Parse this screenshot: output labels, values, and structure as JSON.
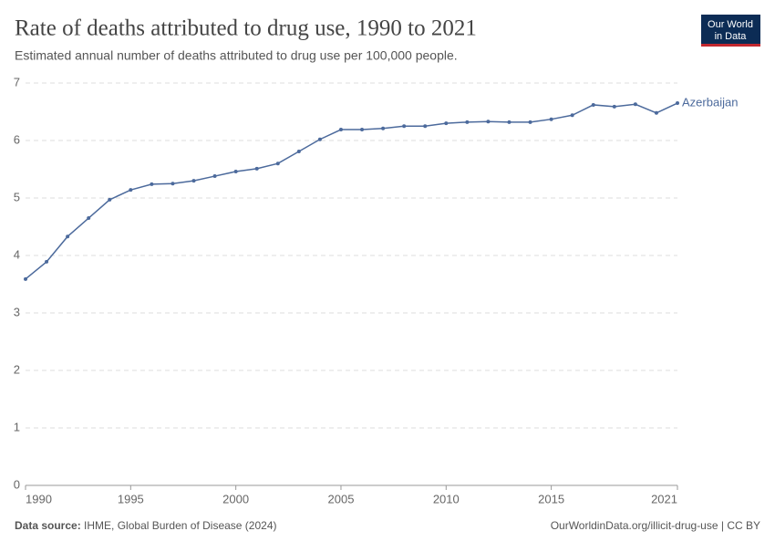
{
  "logo": [
    "Our World",
    "in Data"
  ],
  "chart_data": {
    "type": "line",
    "title": "Rate of deaths attributed to drug use, 1990 to 2021",
    "subtitle": "Estimated annual number of deaths attributed to drug use per 100,000 people.",
    "x": [
      1990,
      1991,
      1992,
      1993,
      1994,
      1995,
      1996,
      1997,
      1998,
      1999,
      2000,
      2001,
      2002,
      2003,
      2004,
      2005,
      2006,
      2007,
      2008,
      2009,
      2010,
      2011,
      2012,
      2013,
      2014,
      2015,
      2016,
      2017,
      2018,
      2019,
      2020,
      2021
    ],
    "series": [
      {
        "name": "Azerbaijan",
        "color": "#4c6a9c",
        "values": [
          3.59,
          3.89,
          4.33,
          4.65,
          4.97,
          5.14,
          5.24,
          5.25,
          5.3,
          5.38,
          5.46,
          5.51,
          5.6,
          5.81,
          6.02,
          6.19,
          6.19,
          6.21,
          6.25,
          6.25,
          6.3,
          6.32,
          6.33,
          6.32,
          6.32,
          6.37,
          6.44,
          6.62,
          6.59,
          6.63,
          6.48,
          6.65
        ]
      }
    ],
    "xlim": [
      1990,
      2021
    ],
    "xticks": [
      1990,
      1995,
      2000,
      2005,
      2010,
      2015,
      2021
    ],
    "ylim": [
      0,
      7
    ],
    "yticks": [
      0,
      1,
      2,
      3,
      4,
      5,
      6,
      7
    ],
    "grid": true
  },
  "footer": {
    "source_label": "Data source:",
    "source": "IHME, Global Burden of Disease (2024)",
    "url": "OurWorldinData.org/illicit-drug-use | CC BY"
  }
}
